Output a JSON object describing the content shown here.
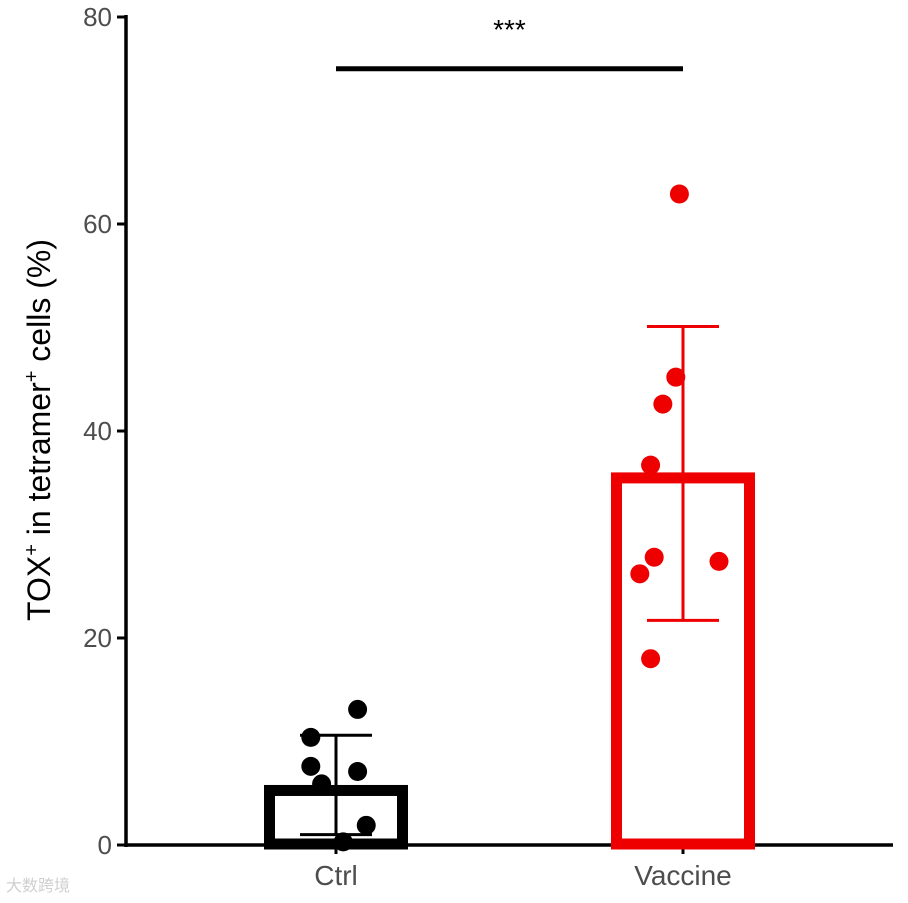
{
  "chart_data": {
    "type": "bar",
    "categories": [
      "Ctrl",
      "Vaccine"
    ],
    "ylim": [
      0,
      80
    ],
    "yticks": [
      0,
      20,
      40,
      60,
      80
    ],
    "ylabel": {
      "part1": "TOX",
      "sup1": "+",
      "part2": " in tetramer",
      "sup2": "+",
      "part3": " cells (%)"
    },
    "xlabel": "",
    "title": "",
    "series": [
      {
        "category": "Ctrl",
        "color": "#000000",
        "mean": 5.8,
        "error_low": 1.0,
        "error_high": 10.6,
        "points": [
          {
            "x_offset": -0.35,
            "y": 10.4
          },
          {
            "x_offset": -0.35,
            "y": 7.6
          },
          {
            "x_offset": -0.2,
            "y": 5.9
          },
          {
            "x_offset": 0.3,
            "y": 13.1
          },
          {
            "x_offset": 0.3,
            "y": 7.1
          },
          {
            "x_offset": 0.42,
            "y": 1.9
          },
          {
            "x_offset": 0.1,
            "y": 0.3
          }
        ]
      },
      {
        "category": "Vaccine",
        "color": "#ee0000",
        "mean": 36.0,
        "error_low": 21.7,
        "error_high": 50.1,
        "points": [
          {
            "x_offset": -0.05,
            "y": 62.9
          },
          {
            "x_offset": -0.1,
            "y": 45.2
          },
          {
            "x_offset": -0.28,
            "y": 42.6
          },
          {
            "x_offset": -0.45,
            "y": 36.7
          },
          {
            "x_offset": -0.4,
            "y": 27.8
          },
          {
            "x_offset": -0.6,
            "y": 26.2
          },
          {
            "x_offset": 0.5,
            "y": 27.4
          },
          {
            "x_offset": -0.45,
            "y": 18.0
          }
        ]
      }
    ],
    "significance": {
      "from": "Ctrl",
      "to": "Vaccine",
      "y": 75,
      "label": "***"
    }
  },
  "watermark": "大数跨境"
}
